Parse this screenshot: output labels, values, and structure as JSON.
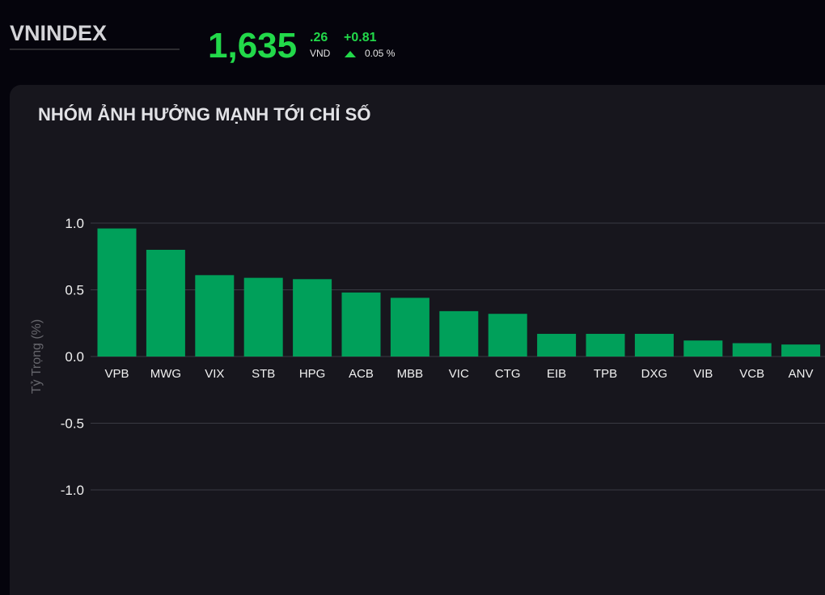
{
  "header": {
    "title": "VNINDEX",
    "price_main": "1,635",
    "price_decimal": ".26",
    "currency": "VND",
    "change": "+0.81",
    "change_percent": "0.05 %"
  },
  "chart_data": {
    "type": "bar",
    "title": "NHÓM ẢNH HƯỞNG MẠNH TỚI CHỈ SỐ",
    "y_label": "Tỷ Trọng (%)",
    "categories": [
      "VPB",
      "MWG",
      "VIX",
      "STB",
      "HPG",
      "ACB",
      "MBB",
      "VIC",
      "CTG",
      "EIB",
      "TPB",
      "DXG",
      "VIB",
      "VCB",
      "ANV"
    ],
    "values": [
      0.96,
      0.8,
      0.61,
      0.59,
      0.58,
      0.48,
      0.44,
      0.34,
      0.32,
      0.17,
      0.17,
      0.17,
      0.12,
      0.1,
      0.09
    ],
    "color": "#00a05a",
    "ylim": [
      -1,
      1
    ],
    "yticks": [
      {
        "value": -1,
        "label": "-1.0"
      },
      -0.5,
      {
        "value": 0,
        "label": "0.0"
      },
      0.5,
      {
        "value": 1,
        "label": "1.0"
      }
    ],
    "grid": true
  }
}
